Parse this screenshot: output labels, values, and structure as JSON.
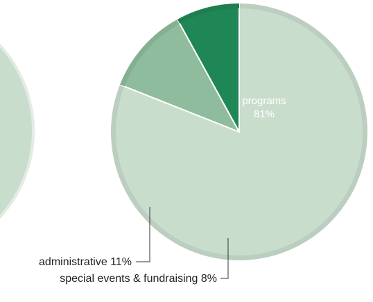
{
  "chart_data": {
    "type": "pie",
    "title": "",
    "legend_placement": "callout-labels",
    "slices": [
      {
        "label": "programs",
        "percent_label": "81%",
        "value": 81,
        "color": "#c9ddcd"
      },
      {
        "label": "administrative",
        "percent_label": "11%",
        "value": 11,
        "color": "#8fbc9c"
      },
      {
        "label": "special events & fundraising",
        "percent_label": "8%",
        "value": 8,
        "color": "#1f8756"
      }
    ]
  },
  "labels": {
    "programs_name": "programs",
    "programs_pct": "81%",
    "administrative": "administrative 11%",
    "special_events": "special events & fundraising 8%"
  },
  "partial_pie": {
    "color": "#c9ddcd"
  }
}
